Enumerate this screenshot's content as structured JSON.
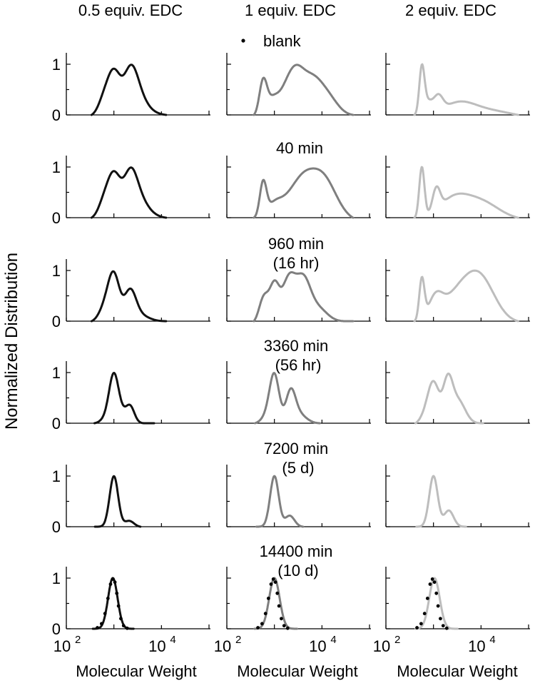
{
  "figure": {
    "column_titles": [
      "0.5 equiv. EDC",
      "1 equiv. EDC",
      "2 equiv. EDC"
    ],
    "ylabel": "Normalized Distribution",
    "xlabel": "Molecular Weight",
    "legend": {
      "symbol": "•",
      "label": "blank"
    },
    "colors": {
      "col0": "#111111",
      "col1": "#7f7f7f",
      "col2": "#bdbdbd",
      "blank": "#000000"
    },
    "rows": [
      {
        "label": [
          "blank"
        ]
      },
      {
        "label": [
          "40 min"
        ]
      },
      {
        "label": [
          "960 min",
          "(16 hr)"
        ]
      },
      {
        "label": [
          "3360 min",
          "(56 hr)"
        ]
      },
      {
        "label": [
          "7200 min",
          "(5 d)"
        ]
      },
      {
        "label": [
          "14400 min",
          "(10 d)"
        ]
      }
    ]
  },
  "chart_data": {
    "type": "line",
    "x_scale": "log",
    "xlim": [
      100,
      100000
    ],
    "ylim": [
      0,
      1
    ],
    "ytick_labels": [
      "0",
      "1"
    ],
    "xtick_labels": [
      {
        "base": "10",
        "exp": "2"
      },
      {
        "base": "10",
        "exp": "4"
      }
    ],
    "panels": [
      [
        {
          "peaks": [
            [
              1000,
              1.0,
              0.14
            ],
            [
              2200,
              0.88,
              0.14
            ],
            [
              3200,
              0.38,
              0.16
            ],
            [
              600,
              0.3,
              0.12
            ],
            [
              5000,
              0.1,
              0.2
            ]
          ],
          "x_start": 340,
          "x_end": 12500
        },
        {
          "peaks": [
            [
              580,
              0.85,
              0.08
            ],
            [
              900,
              0.35,
              0.12
            ],
            [
              1900,
              0.68,
              0.18
            ],
            [
              3000,
              0.45,
              0.15
            ],
            [
              6000,
              0.95,
              0.25
            ],
            [
              15000,
              0.28,
              0.2
            ]
          ],
          "x_start": 370,
          "x_end": 45000
        },
        {
          "peaks": [
            [
              570,
              0.93,
              0.055
            ],
            [
              750,
              0.25,
              0.09
            ],
            [
              1250,
              0.33,
              0.1
            ],
            [
              3000,
              0.22,
              0.3
            ],
            [
              8000,
              0.15,
              0.35
            ],
            [
              30000,
              0.06,
              0.3
            ]
          ],
          "x_start": 400,
          "x_end": 60000
        }
      ],
      [
        {
          "peaks": [
            [
              1000,
              1.0,
              0.14
            ],
            [
              2200,
              0.9,
              0.14
            ],
            [
              3300,
              0.35,
              0.17
            ],
            [
              600,
              0.3,
              0.12
            ],
            [
              5000,
              0.1,
              0.2
            ]
          ],
          "x_start": 340,
          "x_end": 12500
        },
        {
          "peaks": [
            [
              580,
              0.72,
              0.07
            ],
            [
              1000,
              0.32,
              0.17
            ],
            [
              2200,
              0.35,
              0.2
            ],
            [
              9500,
              1.0,
              0.3
            ],
            [
              4000,
              0.42,
              0.2
            ]
          ],
          "x_start": 370,
          "x_end": 45000
        },
        {
          "peaks": [
            [
              570,
              0.97,
              0.055
            ],
            [
              1150,
              0.43,
              0.08
            ],
            [
              2500,
              0.32,
              0.3
            ],
            [
              9000,
              0.36,
              0.4
            ]
          ],
          "x_start": 400,
          "x_end": 60000
        }
      ],
      [
        {
          "peaks": [
            [
              1000,
              1.0,
              0.12
            ],
            [
              2200,
              0.62,
              0.12
            ],
            [
              650,
              0.3,
              0.13
            ],
            [
              3300,
              0.15,
              0.2
            ]
          ],
          "x_start": 340,
          "x_end": 12500
        },
        {
          "peaks": [
            [
              600,
              0.55,
              0.1
            ],
            [
              1000,
              0.78,
              0.1
            ],
            [
              2000,
              0.92,
              0.14
            ],
            [
              4000,
              0.85,
              0.15
            ],
            [
              8000,
              0.3,
              0.2
            ]
          ],
          "x_start": 370,
          "x_end": 45000
        },
        {
          "peaks": [
            [
              570,
              0.87,
              0.055
            ],
            [
              1100,
              0.45,
              0.15
            ],
            [
              2800,
              0.45,
              0.3
            ],
            [
              9000,
              0.98,
              0.32
            ]
          ],
          "x_start": 400,
          "x_end": 60000
        }
      ],
      [
        {
          "peaks": [
            [
              1000,
              1.0,
              0.1
            ],
            [
              2200,
              0.35,
              0.09
            ],
            [
              1500,
              0.15,
              0.1
            ],
            [
              700,
              0.1,
              0.12
            ]
          ],
          "x_start": 390,
          "x_end": 7000
        },
        {
          "peaks": [
            [
              1000,
              1.0,
              0.1
            ],
            [
              2200,
              0.62,
              0.1
            ],
            [
              3200,
              0.2,
              0.16
            ],
            [
              700,
              0.15,
              0.12
            ]
          ],
          "x_start": 390,
          "x_end": 9000
        },
        {
          "peaks": [
            [
              1000,
              0.98,
              0.12
            ],
            [
              2000,
              0.96,
              0.1
            ],
            [
              3300,
              0.55,
              0.15
            ],
            [
              650,
              0.15,
              0.12
            ]
          ],
          "x_start": 420,
          "x_end": 11000
        }
      ],
      [
        {
          "peaks": [
            [
              1000,
              1.0,
              0.09
            ],
            [
              2100,
              0.12,
              0.1
            ]
          ],
          "x_start": 400,
          "x_end": 3600
        },
        {
          "peaks": [
            [
              1000,
              1.0,
              0.09
            ],
            [
              2100,
              0.22,
              0.1
            ]
          ],
          "x_start": 420,
          "x_end": 4000
        },
        {
          "peaks": [
            [
              1000,
              1.0,
              0.09
            ],
            [
              2100,
              0.32,
              0.1
            ]
          ],
          "x_start": 440,
          "x_end": 4800
        }
      ],
      [
        {
          "peaks": [
            [
              950,
              1.0,
              0.1
            ]
          ],
          "x_start": 360,
          "x_end": 2600
        },
        {
          "peaks": [
            [
              1000,
              1.0,
              0.11
            ]
          ],
          "x_start": 380,
          "x_end": 3000
        },
        {
          "peaks": [
            [
              1050,
              1.0,
              0.11
            ]
          ],
          "x_start": 420,
          "x_end": 3200
        }
      ]
    ],
    "blank_series": [
      {
        "x": [
          450,
          550,
          650,
          750,
          850,
          950,
          1050,
          1150,
          1250,
          1400,
          1600,
          1900
        ],
        "y": [
          0.02,
          0.1,
          0.3,
          0.6,
          0.88,
          0.98,
          0.92,
          0.7,
          0.45,
          0.2,
          0.06,
          0.01
        ]
      },
      {
        "x": [
          450,
          550,
          650,
          750,
          850,
          950,
          1050,
          1150,
          1250,
          1400,
          1600,
          1900
        ],
        "y": [
          0.02,
          0.1,
          0.3,
          0.6,
          0.88,
          0.98,
          0.92,
          0.7,
          0.45,
          0.2,
          0.06,
          0.01
        ]
      },
      {
        "x": [
          450,
          550,
          650,
          750,
          850,
          950,
          1050,
          1150,
          1250,
          1400,
          1600,
          1900
        ],
        "y": [
          0.02,
          0.1,
          0.3,
          0.6,
          0.88,
          0.98,
          0.92,
          0.7,
          0.45,
          0.2,
          0.06,
          0.01
        ]
      }
    ]
  }
}
